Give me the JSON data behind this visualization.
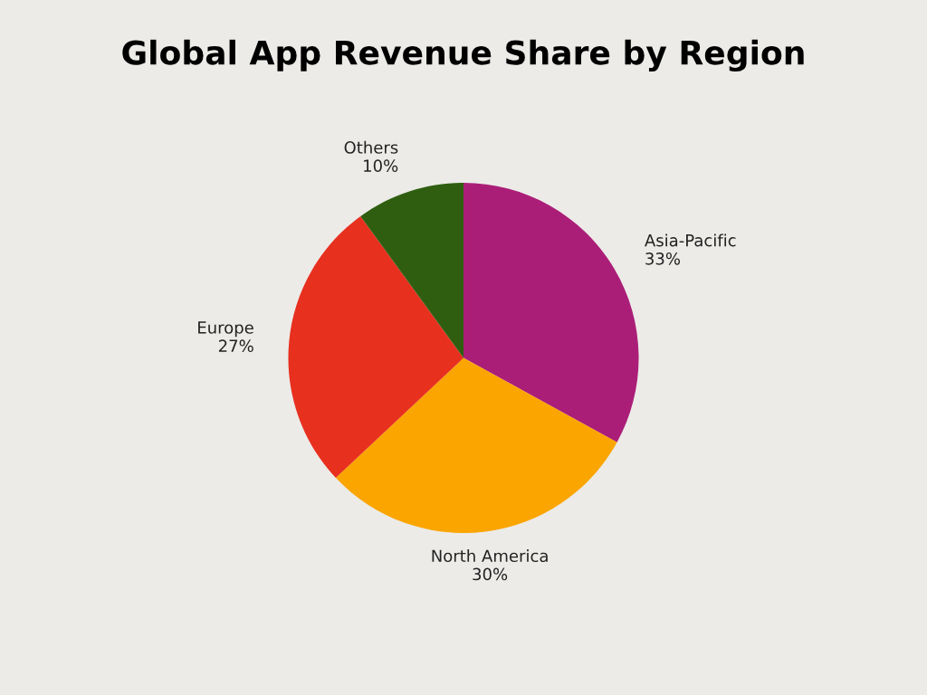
{
  "chart_data": {
    "type": "pie",
    "title": "Global App Revenue Share by Region",
    "categories": [
      "Asia-Pacific",
      "North America",
      "Europe",
      "Others"
    ],
    "values": [
      33,
      30,
      27,
      10
    ],
    "colors": [
      "#ab1e78",
      "#faa500",
      "#e8301f",
      "#2f5e10"
    ],
    "value_labels": [
      "33%",
      "30%",
      "27%",
      "10%"
    ]
  }
}
